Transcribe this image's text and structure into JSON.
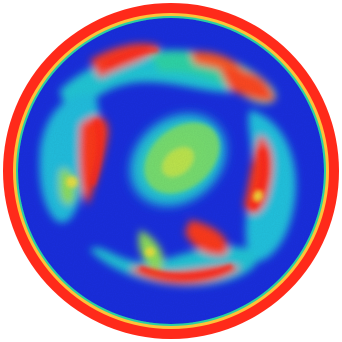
{
  "colormap": {
    "low": "#1a2fe0",
    "low_mid": "#0f8fe6",
    "mid": "#22d6c2",
    "mid_high": "#8ee05a",
    "high": "#f2e23c",
    "max": "#ff2a1a"
  },
  "background": "#ffffff"
}
